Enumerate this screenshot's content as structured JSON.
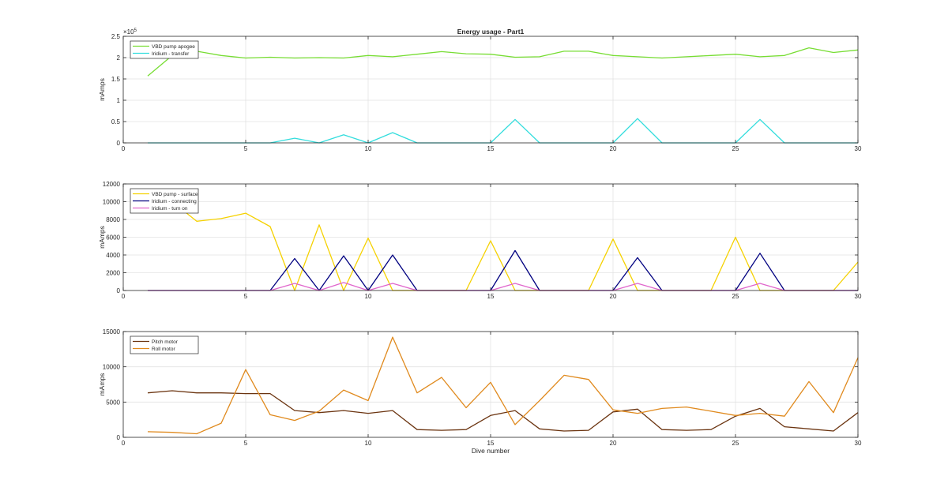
{
  "chart_data": [
    {
      "type": "line",
      "title": "Energy usage - Part1",
      "xlabel": "",
      "ylabel": "mAmps",
      "xlim": [
        0,
        30
      ],
      "ylim": [
        0,
        250000
      ],
      "xticks": [
        0,
        5,
        10,
        15,
        20,
        25,
        30
      ],
      "yticks": [
        0,
        50000,
        100000,
        150000,
        200000,
        250000
      ],
      "ytick_labels": [
        "0",
        "0.5",
        "1",
        "1.5",
        "2",
        "2.5"
      ],
      "exponent_label": "×10",
      "exponent_power": "5",
      "grid": true,
      "legend_position": "top-left",
      "x": [
        1,
        2,
        3,
        4,
        5,
        6,
        7,
        8,
        9,
        10,
        11,
        12,
        13,
        14,
        15,
        16,
        17,
        18,
        19,
        20,
        21,
        22,
        23,
        24,
        25,
        26,
        27,
        28,
        29,
        30
      ],
      "series": [
        {
          "name": "VBD pump apogee",
          "color": "#77dd33",
          "values": [
            157000,
            205000,
            215000,
            205000,
            199000,
            201000,
            199000,
            200000,
            199000,
            205000,
            202000,
            208000,
            214000,
            209000,
            208000,
            201000,
            202000,
            215000,
            215000,
            205000,
            202000,
            199000,
            202000,
            205000,
            208000,
            202000,
            205000,
            223000,
            212000,
            218000
          ]
        },
        {
          "name": "Iridium - transfer",
          "color": "#33dddd",
          "values": [
            0,
            0,
            0,
            0,
            0,
            0,
            11000,
            0,
            19000,
            0,
            24000,
            0,
            0,
            0,
            0,
            55000,
            0,
            0,
            0,
            0,
            57000,
            0,
            0,
            0,
            0,
            55000,
            0,
            0,
            0,
            0
          ]
        }
      ]
    },
    {
      "type": "line",
      "title": "",
      "xlabel": "",
      "ylabel": "mAmps",
      "xlim": [
        0,
        30
      ],
      "ylim": [
        0,
        12000
      ],
      "xticks": [
        0,
        5,
        10,
        15,
        20,
        25,
        30
      ],
      "yticks": [
        0,
        2000,
        4000,
        6000,
        8000,
        10000,
        12000
      ],
      "ytick_labels": [
        "0",
        "2000",
        "4000",
        "6000",
        "8000",
        "10000",
        "12000"
      ],
      "grid": true,
      "legend_position": "top-left",
      "x": [
        1,
        2,
        3,
        4,
        5,
        6,
        7,
        8,
        9,
        10,
        11,
        12,
        13,
        14,
        15,
        16,
        17,
        18,
        19,
        20,
        21,
        22,
        23,
        24,
        25,
        26,
        27,
        28,
        29,
        30
      ],
      "series": [
        {
          "name": "VBD pump - surface",
          "color": "#f5d100",
          "values": [
            10000,
            10000,
            7800,
            8100,
            8700,
            7200,
            0,
            7400,
            0,
            5900,
            0,
            0,
            0,
            0,
            5600,
            0,
            0,
            0,
            0,
            5800,
            0,
            0,
            0,
            0,
            6000,
            0,
            0,
            0,
            0,
            3200
          ]
        },
        {
          "name": "Iridium - connecting",
          "color": "#000080",
          "values": [
            0,
            0,
            0,
            0,
            0,
            0,
            3600,
            0,
            3900,
            0,
            4000,
            0,
            0,
            0,
            0,
            4500,
            0,
            0,
            0,
            0,
            3700,
            0,
            0,
            0,
            0,
            4200,
            0,
            0,
            0,
            0
          ]
        },
        {
          "name": "Iridium - turn on",
          "color": "#e066cc",
          "values": [
            0,
            0,
            0,
            0,
            0,
            0,
            800,
            0,
            900,
            0,
            800,
            0,
            0,
            0,
            0,
            800,
            0,
            0,
            0,
            0,
            800,
            0,
            0,
            0,
            0,
            800,
            0,
            0,
            0,
            0
          ]
        }
      ]
    },
    {
      "type": "line",
      "title": "",
      "xlabel": "Dive number",
      "ylabel": "mAmps",
      "xlim": [
        0,
        30
      ],
      "ylim": [
        0,
        15000
      ],
      "xticks": [
        0,
        5,
        10,
        15,
        20,
        25,
        30
      ],
      "yticks": [
        0,
        5000,
        10000,
        15000
      ],
      "ytick_labels": [
        "0",
        "5000",
        "10000",
        "15000"
      ],
      "grid": true,
      "legend_position": "top-left",
      "x": [
        1,
        2,
        3,
        4,
        5,
        6,
        7,
        8,
        9,
        10,
        11,
        12,
        13,
        14,
        15,
        16,
        17,
        18,
        19,
        20,
        21,
        22,
        23,
        24,
        25,
        26,
        27,
        28,
        29,
        30
      ],
      "series": [
        {
          "name": "Pitch motor",
          "color": "#6b3410",
          "values": [
            6300,
            6600,
            6300,
            6300,
            6200,
            6200,
            3800,
            3500,
            3800,
            3400,
            3800,
            1100,
            1000,
            1100,
            3100,
            3800,
            1200,
            900,
            1000,
            3600,
            4000,
            1100,
            1000,
            1100,
            3000,
            4100,
            1500,
            1200,
            900,
            3500
          ]
        },
        {
          "name": "Roll motor",
          "color": "#e08a1e",
          "values": [
            800,
            700,
            500,
            2000,
            9600,
            3200,
            2400,
            3700,
            6700,
            5200,
            14200,
            6300,
            8500,
            4200,
            7800,
            1800,
            5200,
            8800,
            8200,
            3900,
            3400,
            4100,
            4300,
            3700,
            3100,
            3400,
            3000,
            7900,
            3500,
            11300
          ]
        }
      ]
    }
  ]
}
